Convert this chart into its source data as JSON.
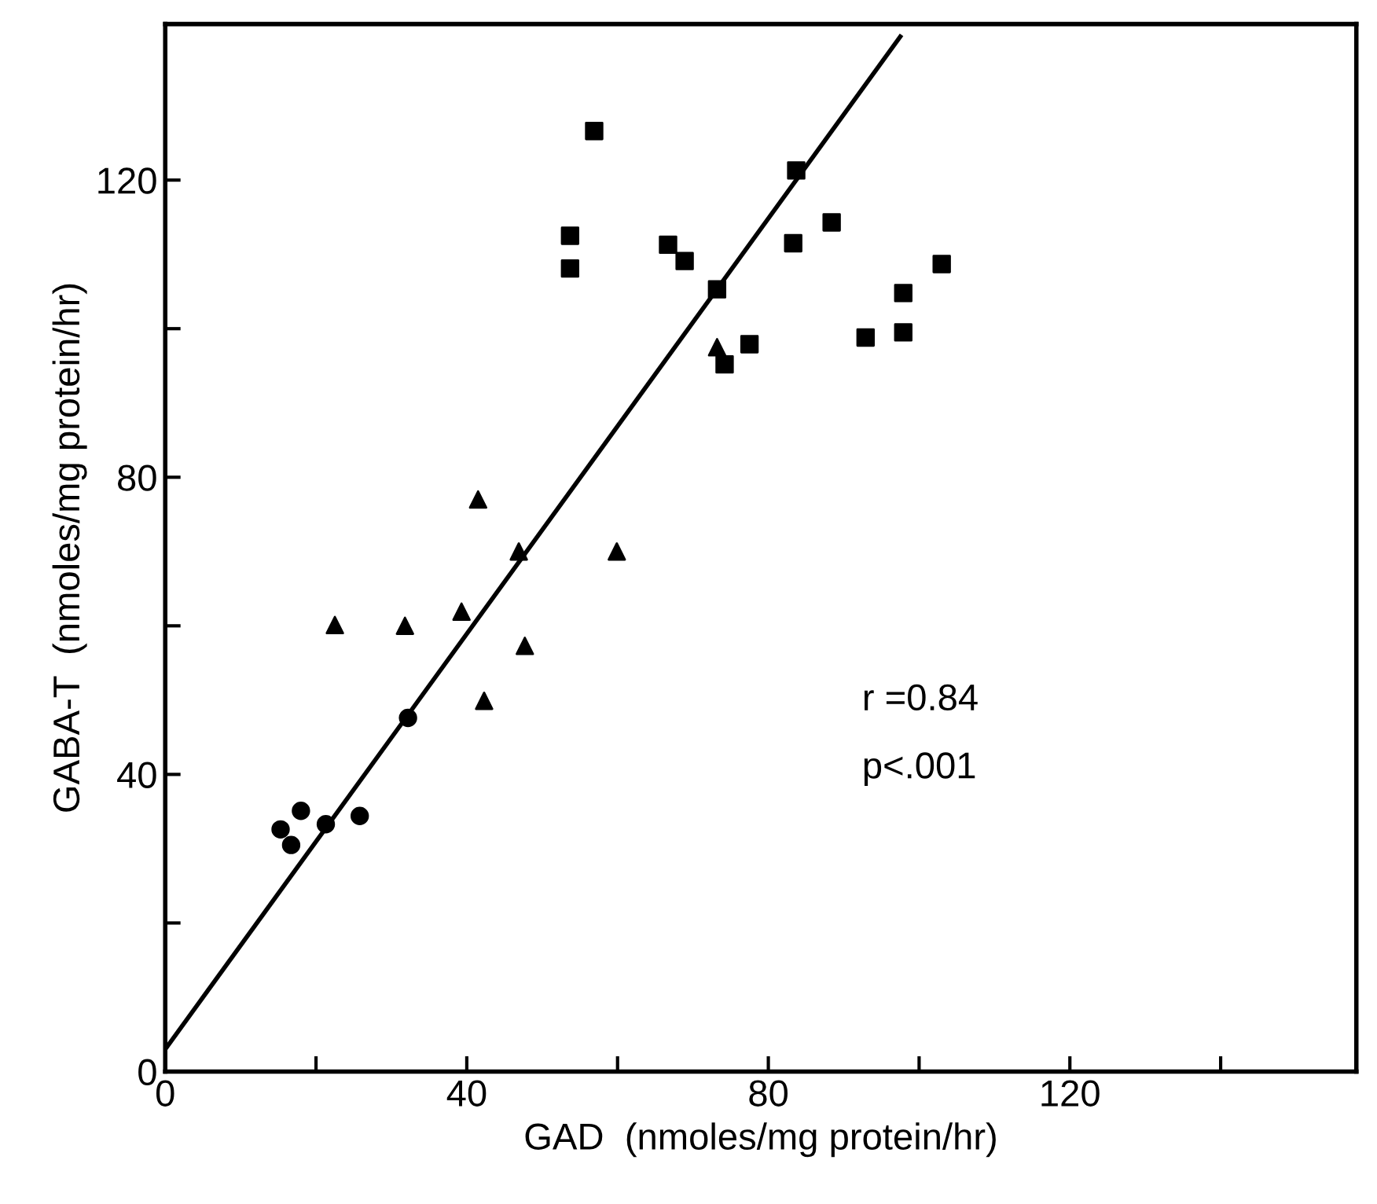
{
  "chart_data": {
    "type": "scatter",
    "xlabel": "GAD  (nmoles/mg protein/hr)",
    "ylabel": "GABA-T  (nmoles/mg protein/hr)",
    "xlim": [
      0,
      158
    ],
    "ylim": [
      0,
      141
    ],
    "xticks": [
      0,
      {
        "value": 20,
        "label": null
      },
      40,
      {
        "value": 60,
        "label": null
      },
      80,
      {
        "value": 100,
        "label": null
      },
      120,
      {
        "value": 140,
        "label": null
      }
    ],
    "yticks": [
      0,
      {
        "value": 20,
        "label": null
      },
      40,
      {
        "value": 60,
        "label": null
      },
      80,
      {
        "value": 100,
        "label": null
      },
      120
    ],
    "grid": false,
    "legend": false,
    "annotations": [
      "r =0.84",
      "p<.001"
    ],
    "series": [
      {
        "color": "#000000",
        "marker": "circle",
        "x": [
          32.2,
          18.0,
          15.3,
          16.7,
          21.3,
          25.8
        ],
        "values": [
          47.6,
          35.1,
          32.6,
          30.5,
          33.3,
          34.4
        ]
      },
      {
        "color": "#000000",
        "marker": "triangle",
        "x": [
          41.5,
          46.9,
          59.9,
          22.5,
          31.8,
          39.3,
          47.7,
          42.3,
          73.2
        ],
        "values": [
          77.0,
          70.0,
          70.0,
          60.1,
          60.0,
          61.9,
          57.3,
          49.9,
          97.5
        ]
      },
      {
        "color": "#000000",
        "marker": "square",
        "x": [
          56.9,
          83.7,
          53.7,
          53.7,
          66.7,
          68.9,
          83.3,
          88.4,
          73.2,
          77.5,
          74.2,
          92.9,
          97.9,
          97.9,
          103.0
        ],
        "values": [
          126.6,
          121.3,
          112.5,
          108.1,
          111.3,
          109.1,
          111.5,
          114.3,
          105.3,
          97.9,
          95.2,
          98.8,
          99.5,
          104.8,
          108.7
        ]
      },
      {
        "type": "line",
        "color": "#000000",
        "marker": "none",
        "line_style": "solid",
        "x": [
          0,
          97.5
        ],
        "values": [
          3,
          139.3
        ]
      }
    ]
  }
}
